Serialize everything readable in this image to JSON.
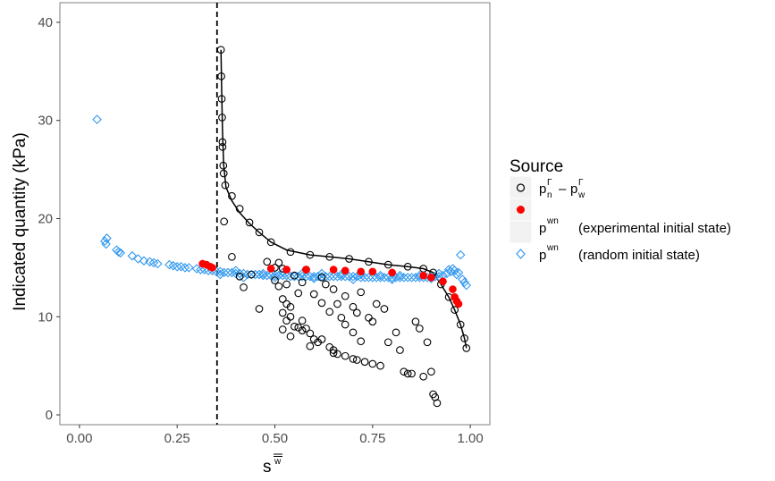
{
  "chart_data": {
    "type": "scatter",
    "title": "",
    "xlabel": "s",
    "xlabel_overline": "w",
    "ylabel": "Indicated quantity (kPa)",
    "xlim": [
      -0.05,
      1.05
    ],
    "ylim": [
      -1.0,
      42.0
    ],
    "x_ticks": [
      0.0,
      0.25,
      0.5,
      0.75,
      1.0
    ],
    "x_tick_labels": [
      "0.00",
      "0.25",
      "0.50",
      "0.75",
      "1.00"
    ],
    "y_ticks": [
      0,
      10,
      20,
      30,
      40
    ],
    "y_tick_labels": [
      "0",
      "10",
      "20",
      "30",
      "40"
    ],
    "grid": false,
    "vline": {
      "x": 0.352,
      "style": "dashed"
    },
    "colors": {
      "black": "#000000",
      "red": "#ff0000",
      "blue": "#3399ee"
    },
    "legend": {
      "title": "Source",
      "position": "right",
      "entries": [
        {
          "base": "p",
          "sup": "Γ",
          "sub": "n",
          "minus": "–",
          "base2": "p",
          "sup2": "Γ",
          "sub2": "w",
          "marker": "circle-open"
        },
        {
          "base": "p",
          "sup": "wn",
          "text": "(experimental initial state)",
          "marker": "circle-filled"
        },
        {
          "base": "p",
          "sup": "wn",
          "text": "(random initial state)",
          "marker": "diamond-open"
        }
      ]
    },
    "series": [
      {
        "name": "pnΓ – pwΓ",
        "marker": "circle-open",
        "color": "#000000",
        "points": [
          [
            0.362,
            37.2
          ],
          [
            0.363,
            34.5
          ],
          [
            0.364,
            32.2
          ],
          [
            0.365,
            30.3
          ],
          [
            0.366,
            27.8
          ],
          [
            0.366,
            27.3
          ],
          [
            0.368,
            25.4
          ],
          [
            0.369,
            24.6
          ],
          [
            0.373,
            23.4
          ],
          [
            0.37,
            19.7
          ],
          [
            0.39,
            22.3
          ],
          [
            0.41,
            21.0
          ],
          [
            0.435,
            19.6
          ],
          [
            0.46,
            18.6
          ],
          [
            0.49,
            17.6
          ],
          [
            0.54,
            16.6
          ],
          [
            0.59,
            16.3
          ],
          [
            0.64,
            16.1
          ],
          [
            0.69,
            15.9
          ],
          [
            0.74,
            15.6
          ],
          [
            0.79,
            15.3
          ],
          [
            0.84,
            15.1
          ],
          [
            0.88,
            14.9
          ],
          [
            0.905,
            14.5
          ],
          [
            0.925,
            13.3
          ],
          [
            0.945,
            12.0
          ],
          [
            0.96,
            10.7
          ],
          [
            0.975,
            9.2
          ],
          [
            0.985,
            7.8
          ],
          [
            0.99,
            6.8
          ],
          [
            0.39,
            16.1
          ],
          [
            0.41,
            14.1
          ],
          [
            0.42,
            13.0
          ],
          [
            0.46,
            10.8
          ],
          [
            0.48,
            15.6
          ],
          [
            0.5,
            15.0
          ],
          [
            0.51,
            15.5
          ],
          [
            0.52,
            14.9
          ],
          [
            0.5,
            13.7
          ],
          [
            0.51,
            13.1
          ],
          [
            0.53,
            13.3
          ],
          [
            0.52,
            11.8
          ],
          [
            0.53,
            11.3
          ],
          [
            0.52,
            10.4
          ],
          [
            0.54,
            10.0
          ],
          [
            0.53,
            9.6
          ],
          [
            0.55,
            9.0
          ],
          [
            0.52,
            8.7
          ],
          [
            0.54,
            8.0
          ],
          [
            0.56,
            8.9
          ],
          [
            0.57,
            8.6
          ],
          [
            0.58,
            8.8
          ],
          [
            0.6,
            7.7
          ],
          [
            0.61,
            7.4
          ],
          [
            0.59,
            7.0
          ],
          [
            0.62,
            7.7
          ],
          [
            0.64,
            6.9
          ],
          [
            0.65,
            6.6
          ],
          [
            0.65,
            6.3
          ],
          [
            0.66,
            6.2
          ],
          [
            0.63,
            13.3
          ],
          [
            0.65,
            12.8
          ],
          [
            0.64,
            10.5
          ],
          [
            0.67,
            9.9
          ],
          [
            0.68,
            9.2
          ],
          [
            0.7,
            8.4
          ],
          [
            0.72,
            7.5
          ],
          [
            0.68,
            6.0
          ],
          [
            0.7,
            5.7
          ],
          [
            0.71,
            5.6
          ],
          [
            0.73,
            5.4
          ],
          [
            0.75,
            5.2
          ],
          [
            0.77,
            5.0
          ],
          [
            0.55,
            14.2
          ],
          [
            0.57,
            13.5
          ],
          [
            0.6,
            12.3
          ],
          [
            0.62,
            11.4
          ],
          [
            0.66,
            11.3
          ],
          [
            0.68,
            12.1
          ],
          [
            0.7,
            11.0
          ],
          [
            0.71,
            10.4
          ],
          [
            0.72,
            12.5
          ],
          [
            0.74,
            9.9
          ],
          [
            0.75,
            9.5
          ],
          [
            0.76,
            11.3
          ],
          [
            0.78,
            10.8
          ],
          [
            0.79,
            7.4
          ],
          [
            0.81,
            8.4
          ],
          [
            0.82,
            6.6
          ],
          [
            0.83,
            4.4
          ],
          [
            0.84,
            4.2
          ],
          [
            0.85,
            4.2
          ],
          [
            0.86,
            9.5
          ],
          [
            0.87,
            8.8
          ],
          [
            0.88,
            3.9
          ],
          [
            0.89,
            7.4
          ],
          [
            0.9,
            4.4
          ],
          [
            0.905,
            2.1
          ],
          [
            0.91,
            1.8
          ],
          [
            0.915,
            1.2
          ],
          [
            0.62,
            14.0
          ],
          [
            0.56,
            12.4
          ],
          [
            0.54,
            11.0
          ],
          [
            0.44,
            14.3
          ],
          [
            0.58,
            14.8
          ],
          [
            0.57,
            9.6
          ],
          [
            0.59,
            8.3
          ]
        ]
      },
      {
        "name": "pwn (experimental initial state)",
        "marker": "circle-filled",
        "color": "#ff0000",
        "points": [
          [
            0.315,
            15.4
          ],
          [
            0.325,
            15.3
          ],
          [
            0.335,
            15.1
          ],
          [
            0.34,
            15.0
          ],
          [
            0.49,
            14.9
          ],
          [
            0.53,
            14.8
          ],
          [
            0.58,
            14.8
          ],
          [
            0.65,
            14.8
          ],
          [
            0.68,
            14.7
          ],
          [
            0.72,
            14.6
          ],
          [
            0.75,
            14.6
          ],
          [
            0.8,
            14.5
          ],
          [
            0.88,
            14.2
          ],
          [
            0.9,
            14.0
          ],
          [
            0.93,
            13.6
          ],
          [
            0.955,
            12.8
          ],
          [
            0.96,
            12.0
          ],
          [
            0.965,
            11.6
          ],
          [
            0.97,
            11.3
          ]
        ]
      },
      {
        "name": "pwn (random initial state)",
        "marker": "diamond-open",
        "color": "#3399ee",
        "points": [
          [
            0.045,
            30.1
          ],
          [
            0.065,
            17.7
          ],
          [
            0.068,
            17.4
          ],
          [
            0.07,
            18.0
          ],
          [
            0.095,
            16.8
          ],
          [
            0.1,
            16.6
          ],
          [
            0.105,
            16.5
          ],
          [
            0.135,
            16.2
          ],
          [
            0.15,
            15.9
          ],
          [
            0.165,
            15.7
          ],
          [
            0.18,
            15.6
          ],
          [
            0.19,
            15.5
          ],
          [
            0.2,
            15.4
          ],
          [
            0.23,
            15.3
          ],
          [
            0.24,
            15.2
          ],
          [
            0.25,
            15.1
          ],
          [
            0.26,
            15.1
          ],
          [
            0.27,
            15.0
          ],
          [
            0.28,
            15.0
          ],
          [
            0.3,
            14.9
          ],
          [
            0.31,
            14.8
          ],
          [
            0.32,
            14.8
          ],
          [
            0.33,
            14.7
          ],
          [
            0.34,
            14.7
          ],
          [
            0.35,
            14.6
          ],
          [
            0.36,
            14.6
          ],
          [
            0.37,
            14.5
          ],
          [
            0.38,
            14.5
          ],
          [
            0.39,
            14.5
          ],
          [
            0.4,
            14.4
          ],
          [
            0.41,
            14.4
          ],
          [
            0.42,
            14.4
          ],
          [
            0.43,
            14.3
          ],
          [
            0.44,
            14.3
          ],
          [
            0.45,
            14.3
          ],
          [
            0.46,
            14.3
          ],
          [
            0.47,
            14.2
          ],
          [
            0.48,
            14.2
          ],
          [
            0.49,
            14.2
          ],
          [
            0.5,
            14.2
          ],
          [
            0.51,
            14.2
          ],
          [
            0.52,
            14.2
          ],
          [
            0.53,
            14.2
          ],
          [
            0.54,
            14.1
          ],
          [
            0.55,
            14.1
          ],
          [
            0.56,
            14.1
          ],
          [
            0.57,
            14.1
          ],
          [
            0.58,
            14.1
          ],
          [
            0.59,
            14.1
          ],
          [
            0.6,
            14.1
          ],
          [
            0.61,
            14.1
          ],
          [
            0.62,
            14.1
          ],
          [
            0.63,
            14.1
          ],
          [
            0.64,
            14.1
          ],
          [
            0.65,
            14.1
          ],
          [
            0.66,
            14.1
          ],
          [
            0.67,
            14.1
          ],
          [
            0.68,
            14.1
          ],
          [
            0.69,
            14.1
          ],
          [
            0.7,
            14.1
          ],
          [
            0.71,
            14.1
          ],
          [
            0.72,
            14.0
          ],
          [
            0.73,
            14.0
          ],
          [
            0.74,
            14.0
          ],
          [
            0.75,
            14.0
          ],
          [
            0.76,
            14.0
          ],
          [
            0.77,
            14.0
          ],
          [
            0.78,
            14.0
          ],
          [
            0.79,
            14.0
          ],
          [
            0.8,
            14.0
          ],
          [
            0.81,
            14.0
          ],
          [
            0.82,
            14.0
          ],
          [
            0.83,
            14.0
          ],
          [
            0.84,
            14.0
          ],
          [
            0.85,
            14.0
          ],
          [
            0.86,
            14.0
          ],
          [
            0.87,
            14.0
          ],
          [
            0.88,
            14.0
          ],
          [
            0.89,
            14.0
          ],
          [
            0.9,
            14.0
          ],
          [
            0.91,
            14.1
          ],
          [
            0.92,
            14.1
          ],
          [
            0.93,
            14.2
          ],
          [
            0.94,
            14.4
          ],
          [
            0.95,
            14.6
          ],
          [
            0.96,
            14.7
          ],
          [
            0.97,
            14.5
          ],
          [
            0.975,
            16.3
          ],
          [
            0.98,
            13.8
          ],
          [
            0.985,
            13.5
          ],
          [
            0.99,
            13.2
          ],
          [
            0.36,
            14.3
          ],
          [
            0.42,
            14.0
          ],
          [
            0.47,
            14.4
          ],
          [
            0.52,
            14.5
          ],
          [
            0.57,
            14.4
          ],
          [
            0.62,
            14.4
          ],
          [
            0.67,
            14.3
          ],
          [
            0.72,
            14.3
          ],
          [
            0.77,
            14.2
          ],
          [
            0.82,
            14.2
          ],
          [
            0.87,
            14.2
          ],
          [
            0.92,
            14.4
          ],
          [
            0.945,
            14.8
          ],
          [
            0.955,
            14.9
          ],
          [
            0.965,
            14.3
          ],
          [
            0.4,
            14.7
          ],
          [
            0.5,
            14.0
          ],
          [
            0.6,
            13.9
          ],
          [
            0.7,
            13.8
          ],
          [
            0.8,
            13.8
          ],
          [
            0.9,
            13.9
          ]
        ]
      }
    ],
    "fit_line": {
      "series": "pnΓ – pwΓ",
      "points": [
        [
          0.362,
          37.2
        ],
        [
          0.364,
          33.0
        ],
        [
          0.366,
          29.0
        ],
        [
          0.369,
          25.5
        ],
        [
          0.375,
          23.2
        ],
        [
          0.39,
          21.8
        ],
        [
          0.41,
          20.6
        ],
        [
          0.435,
          19.5
        ],
        [
          0.46,
          18.6
        ],
        [
          0.49,
          17.6
        ],
        [
          0.53,
          16.8
        ],
        [
          0.59,
          16.3
        ],
        [
          0.64,
          16.1
        ],
        [
          0.69,
          15.9
        ],
        [
          0.74,
          15.6
        ],
        [
          0.79,
          15.3
        ],
        [
          0.84,
          15.1
        ],
        [
          0.88,
          14.9
        ],
        [
          0.905,
          14.5
        ],
        [
          0.925,
          13.3
        ],
        [
          0.945,
          12.0
        ],
        [
          0.96,
          10.7
        ],
        [
          0.975,
          9.2
        ],
        [
          0.985,
          7.8
        ],
        [
          0.99,
          6.8
        ]
      ]
    }
  }
}
